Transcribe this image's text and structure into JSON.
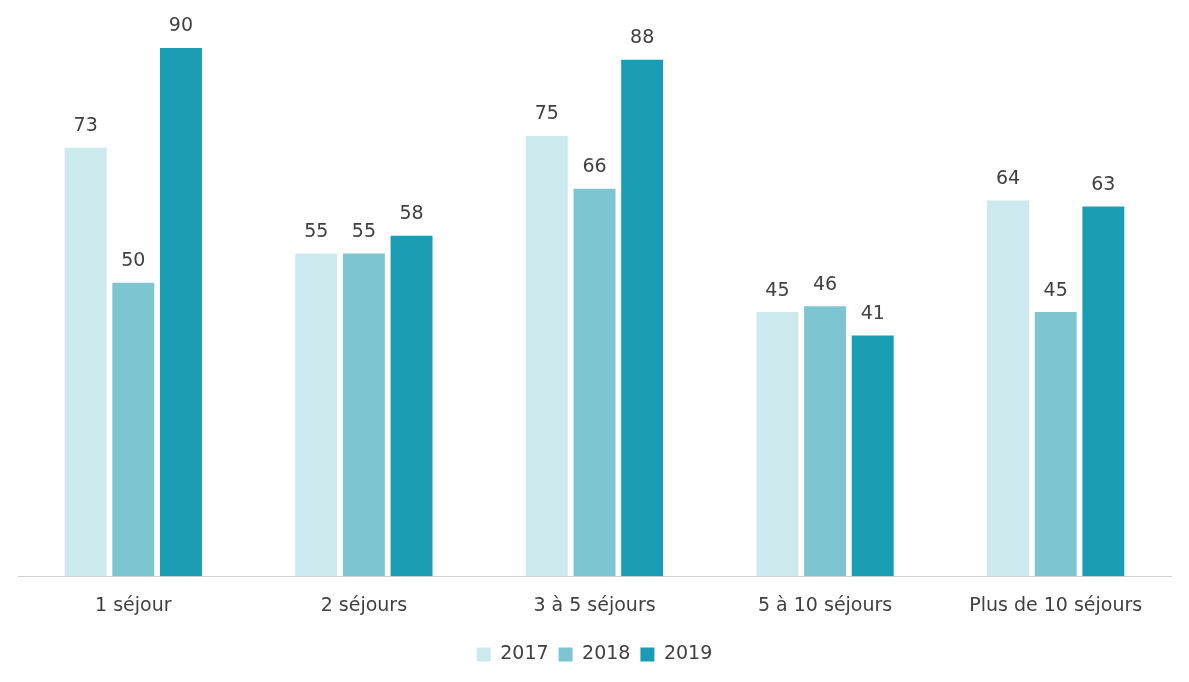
{
  "chart_data": {
    "type": "bar",
    "categories": [
      "1 séjour",
      "2 séjours",
      "3 à 5 séjours",
      "5 à 10 séjours",
      "Plus de 10 séjours"
    ],
    "series": [
      {
        "name": "2017",
        "color": "#cce9ee",
        "values": [
          73,
          55,
          75,
          45,
          64
        ]
      },
      {
        "name": "2018",
        "color": "#7cc5d1",
        "values": [
          50,
          55,
          66,
          46,
          45
        ]
      },
      {
        "name": "2019",
        "color": "#1a9db2",
        "values": [
          90,
          58,
          88,
          41,
          63
        ]
      }
    ],
    "data_labels": true,
    "grid": false,
    "legend": "bottom"
  }
}
